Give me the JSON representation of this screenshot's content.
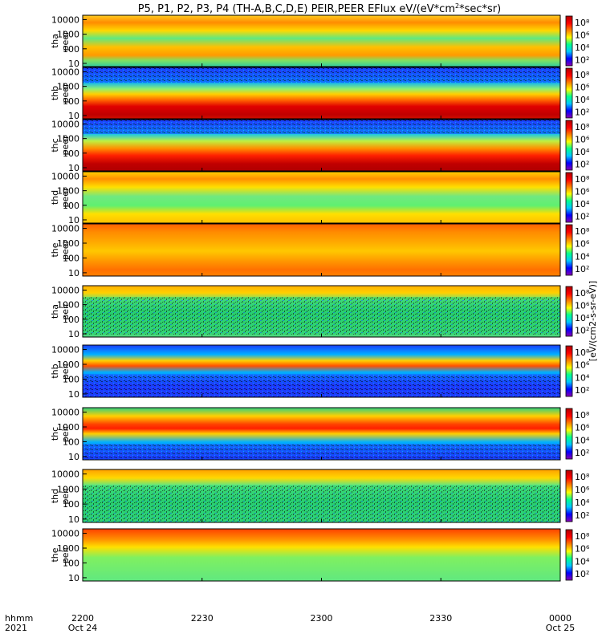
{
  "chart_data": {
    "type": "heatmap",
    "title": "P5, P1, P2, P3, P4 (TH-A,B,C,D,E) PEIR,PEER EFlux eV/(eV*cm²*sec*sr)",
    "title_parts": {
      "before_sup": "P5, P1, P2, P3, P4 (TH-A,B,C,D,E) PEIR,PEER EFlux eV/(eV*cm",
      "sup": "2",
      "after_sup": "*sec*sr)"
    },
    "time_axis": {
      "row_labels": [
        "hhmm",
        "2021"
      ],
      "ticks": [
        {
          "hhmm": "2200",
          "date": "Oct 24"
        },
        {
          "hhmm": "2230",
          "date": ""
        },
        {
          "hhmm": "2300",
          "date": ""
        },
        {
          "hhmm": "2330",
          "date": ""
        },
        {
          "hhmm": "0000",
          "date": "Oct 25"
        }
      ],
      "start": "2021-10-24 22:00",
      "end": "2021-10-25 00:00"
    },
    "y_axis": {
      "scale": "log",
      "units": "eV",
      "tick_labels": [
        "10",
        "100",
        "1000",
        "10000"
      ]
    },
    "colorbar": {
      "scale": "log",
      "tick_labels": [
        "10²",
        "10⁴",
        "10⁶",
        "10⁸"
      ],
      "label": "[eV/(cm2-s-sr-eV)]",
      "colors": [
        "#8b00b0",
        "#0000ff",
        "#00c8ff",
        "#00ff90",
        "#ffff00",
        "#ff8000",
        "#ff0000",
        "#b00000"
      ]
    },
    "panels": [
      {
        "probe": "tha",
        "instrument": "peer",
        "label_top": "tha",
        "label_bottom": "peer"
      },
      {
        "probe": "thb",
        "instrument": "peer",
        "label_top": "thb",
        "label_bottom": "peer"
      },
      {
        "probe": "thc",
        "instrument": "peer",
        "label_top": "thc",
        "label_bottom": "peer"
      },
      {
        "probe": "thd",
        "instrument": "peer",
        "label_top": "thd",
        "label_bottom": "peer"
      },
      {
        "probe": "the",
        "instrument": "peer",
        "label_top": "the",
        "label_bottom": "peer"
      },
      {
        "probe": "tha",
        "instrument": "peir",
        "label_top": "tha",
        "label_bottom": "peir"
      },
      {
        "probe": "thb",
        "instrument": "peir",
        "label_top": "thb",
        "label_bottom": "peir"
      },
      {
        "probe": "thc",
        "instrument": "peir",
        "label_top": "thc",
        "label_bottom": "peir"
      },
      {
        "probe": "thd",
        "instrument": "peir",
        "label_top": "thd",
        "label_bottom": "peir"
      },
      {
        "probe": "the",
        "instrument": "peir",
        "label_top": "the",
        "label_bottom": "peir"
      }
    ]
  }
}
